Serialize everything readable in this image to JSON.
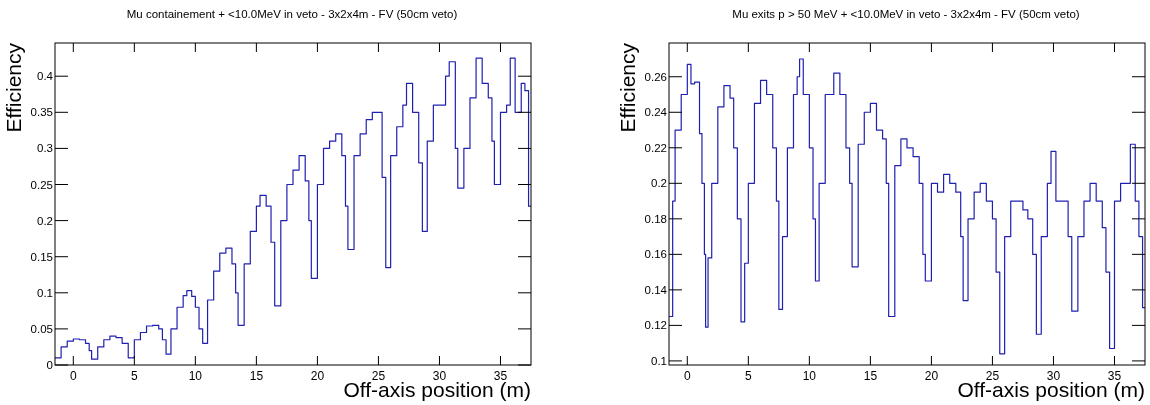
{
  "chart_data": [
    {
      "type": "step",
      "title": "Mu containement + <10.0MeV in veto - 3x2x4m - FV (50cm veto)",
      "xlabel": "Off-axis position (m)",
      "ylabel": "Efficiency",
      "xlim": [
        -1.5,
        37.5
      ],
      "ylim": [
        0,
        0.446
      ],
      "xticks": [
        0,
        5,
        10,
        15,
        20,
        25,
        30,
        35
      ],
      "yticks": [
        0,
        0.05,
        0.1,
        0.15,
        0.2,
        0.25,
        0.3,
        0.35,
        0.4
      ],
      "grid": false,
      "series": [
        {
          "color": "#2020b0",
          "x": [
            -1.5,
            -1,
            -0.5,
            0,
            0.5,
            1,
            1.3,
            1.5,
            2,
            2.5,
            3,
            3.5,
            4,
            4.5,
            5,
            5.5,
            6,
            6.5,
            7,
            7.3,
            7.6,
            8,
            8.5,
            9,
            9.3,
            9.7,
            10,
            10.3,
            10.6,
            11,
            11.5,
            12,
            12.5,
            13,
            13.3,
            13.5,
            14,
            14.5,
            15,
            15.3,
            15.8,
            16.2,
            16.5,
            17,
            17.5,
            18,
            18.5,
            19,
            19.3,
            19.5,
            20,
            20.5,
            21,
            21.5,
            22,
            22.3,
            22.5,
            23,
            23.5,
            24,
            24.5,
            25,
            25.3,
            25.6,
            26,
            26.5,
            27,
            27.3,
            27.8,
            28.3,
            28.6,
            29,
            29.5,
            30,
            30.5,
            30.8,
            31.3,
            31.5,
            32,
            32.5,
            33,
            33.5,
            34,
            34.3,
            34.5,
            35,
            35.5,
            35.8,
            36.2,
            36.7,
            37,
            37.3
          ],
          "values": [
            0.01,
            0.025,
            0.033,
            0.036,
            0.035,
            0.03,
            0.02,
            0.008,
            0.025,
            0.035,
            0.04,
            0.038,
            0.03,
            0.01,
            0.035,
            0.045,
            0.054,
            0.055,
            0.05,
            0.035,
            0.015,
            0.05,
            0.08,
            0.096,
            0.103,
            0.095,
            0.08,
            0.05,
            0.03,
            0.09,
            0.13,
            0.155,
            0.162,
            0.14,
            0.1,
            0.055,
            0.14,
            0.185,
            0.22,
            0.235,
            0.22,
            0.17,
            0.082,
            0.2,
            0.25,
            0.27,
            0.29,
            0.255,
            0.2,
            0.12,
            0.25,
            0.3,
            0.31,
            0.32,
            0.29,
            0.22,
            0.16,
            0.29,
            0.32,
            0.34,
            0.35,
            0.35,
            0.26,
            0.135,
            0.29,
            0.33,
            0.36,
            0.39,
            0.35,
            0.28,
            0.185,
            0.31,
            0.36,
            0.36,
            0.4,
            0.42,
            0.3,
            0.245,
            0.3,
            0.37,
            0.425,
            0.39,
            0.37,
            0.31,
            0.25,
            0.35,
            0.36,
            0.425,
            0.35,
            0.39,
            0.38,
            0.22
          ]
        }
      ]
    },
    {
      "type": "step",
      "title": "Mu exits p > 50 MeV + <10.0MeV in veto - 3x2x4m - FV (50cm veto)",
      "xlabel": "Off-axis position (m)",
      "ylabel": "Efficiency",
      "xlim": [
        -1.5,
        37.5
      ],
      "ylim": [
        0.0977,
        0.279
      ],
      "xticks": [
        0,
        5,
        10,
        15,
        20,
        25,
        30,
        35
      ],
      "yticks": [
        0.1,
        0.12,
        0.14,
        0.16,
        0.18,
        0.2,
        0.22,
        0.24,
        0.26
      ],
      "grid": false,
      "series": [
        {
          "color": "#2020b0",
          "x": [
            -1.5,
            -1.2,
            -1,
            -0.5,
            0,
            0.3,
            0.6,
            1,
            1.2,
            1.4,
            1.5,
            1.7,
            2,
            2.5,
            3,
            3.5,
            3.8,
            4.1,
            4.4,
            4.7,
            5,
            5.5,
            6,
            6.5,
            7,
            7.3,
            7.5,
            7.8,
            8.2,
            8.7,
            9,
            9.2,
            9.5,
            10,
            10.3,
            10.5,
            10.8,
            11.3,
            12,
            12.5,
            13,
            13.3,
            13.5,
            14,
            14.5,
            15,
            15.5,
            16,
            16.3,
            16.5,
            17,
            17.5,
            18,
            18.5,
            19,
            19.3,
            19.5,
            20,
            20.5,
            21,
            21.5,
            22,
            22.4,
            22.6,
            23,
            23.5,
            24,
            24.5,
            25,
            25.3,
            25.6,
            26,
            26.5,
            27,
            27.5,
            27.9,
            28.3,
            28.6,
            29,
            29.5,
            29.8,
            30.2,
            30.7,
            31.2,
            31.5,
            32,
            32.5,
            33,
            33.5,
            34,
            34.3,
            34.6,
            35,
            35.5,
            36,
            36.3,
            36.7,
            37,
            37.3
          ],
          "values": [
            0.125,
            0.19,
            0.23,
            0.25,
            0.267,
            0.256,
            0.257,
            0.228,
            0.2,
            0.16,
            0.119,
            0.158,
            0.2,
            0.243,
            0.255,
            0.248,
            0.22,
            0.18,
            0.122,
            0.155,
            0.2,
            0.245,
            0.258,
            0.25,
            0.22,
            0.19,
            0.129,
            0.17,
            0.22,
            0.25,
            0.26,
            0.27,
            0.25,
            0.22,
            0.18,
            0.145,
            0.2,
            0.25,
            0.262,
            0.25,
            0.22,
            0.2,
            0.153,
            0.222,
            0.24,
            0.245,
            0.23,
            0.225,
            0.2,
            0.125,
            0.21,
            0.225,
            0.22,
            0.215,
            0.2,
            0.16,
            0.145,
            0.2,
            0.195,
            0.205,
            0.2,
            0.195,
            0.17,
            0.134,
            0.18,
            0.195,
            0.2,
            0.19,
            0.18,
            0.15,
            0.104,
            0.17,
            0.19,
            0.19,
            0.185,
            0.18,
            0.16,
            0.115,
            0.17,
            0.2,
            0.218,
            0.19,
            0.19,
            0.17,
            0.128,
            0.17,
            0.19,
            0.2,
            0.19,
            0.175,
            0.15,
            0.107,
            0.19,
            0.2,
            0.2,
            0.222,
            0.19,
            0.17,
            0.13
          ]
        }
      ]
    }
  ]
}
